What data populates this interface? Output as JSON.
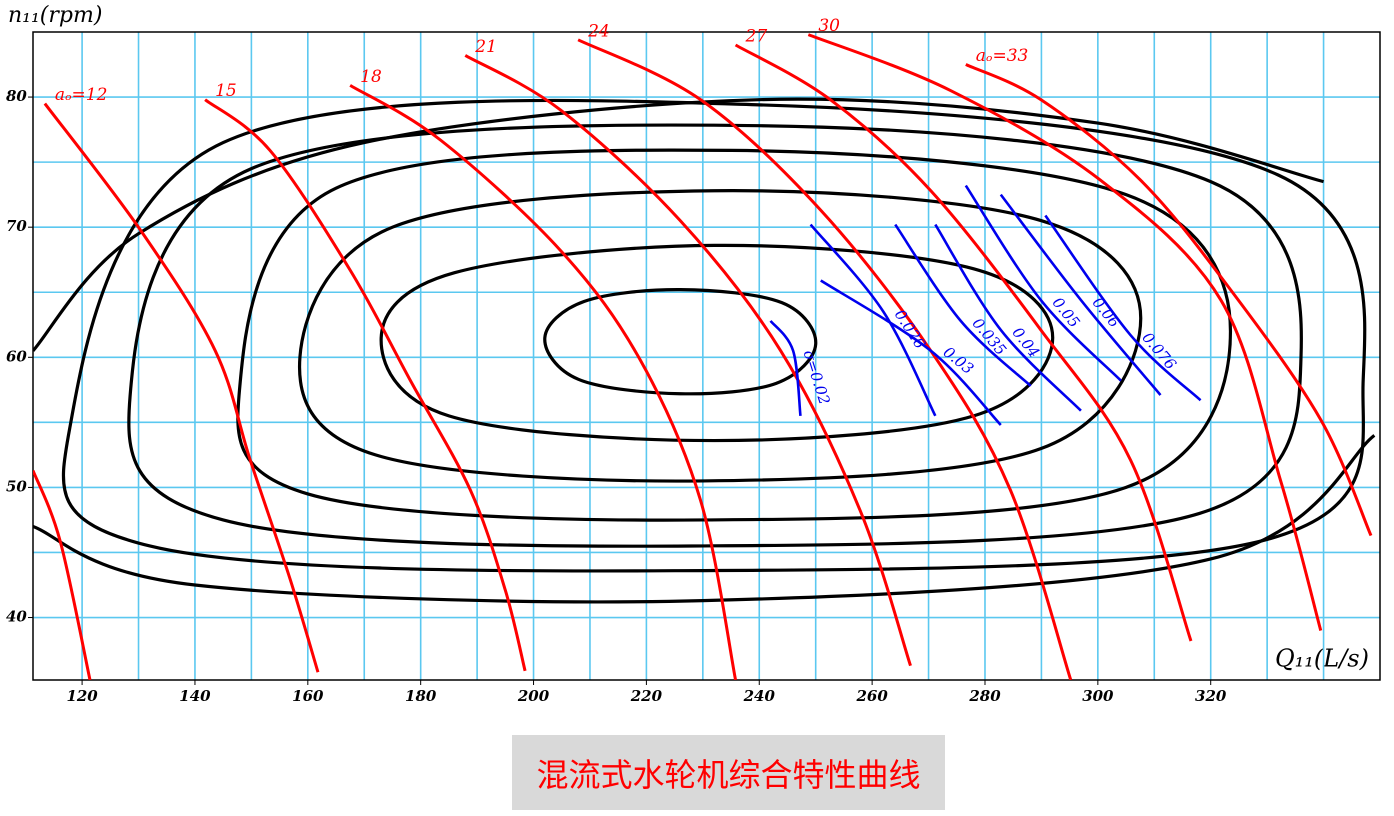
{
  "chart_data": {
    "type": "line",
    "y_label": "n₁₁(rpm)",
    "x_label": "Q₁₁(L/s)",
    "caption": "混流式水轮机综合特性曲线",
    "xlim": [
      111.3,
      350
    ],
    "ylim": [
      35.2,
      85
    ],
    "xticks": [
      120,
      140,
      160,
      180,
      200,
      220,
      240,
      260,
      280,
      300,
      320
    ],
    "yticks": [
      40,
      50,
      60,
      70,
      80
    ],
    "xgrid": [
      120,
      130,
      140,
      150,
      160,
      170,
      180,
      190,
      200,
      210,
      220,
      230,
      240,
      250,
      260,
      270,
      280,
      290,
      300,
      310,
      320,
      330,
      340
    ],
    "ygrid": [
      40,
      45,
      50,
      55,
      60,
      65,
      70,
      75,
      80
    ],
    "grid_color": "#5bc8f0",
    "efficiency_contours": [
      {
        "color": "#000000",
        "closed": true,
        "x": [
          202,
          208,
          226,
          243,
          250,
          244,
          226,
          209
        ],
        "y": [
          61.5,
          58.3,
          57.2,
          58,
          61,
          64.2,
          65.2,
          64.3
        ]
      },
      {
        "color": "#000000",
        "closed": true,
        "x": [
          173,
          185,
          232,
          278,
          292,
          278,
          232,
          186
        ],
        "y": [
          61.5,
          55.5,
          53.6,
          55.5,
          61.5,
          66.8,
          68.6,
          66.5
        ]
      },
      {
        "color": "#000000",
        "closed": true,
        "x": [
          158.6,
          172,
          230,
          290,
          307.6,
          290,
          232,
          175
        ],
        "y": [
          60,
          52.5,
          50.5,
          53,
          63,
          70.5,
          72.8,
          70
        ]
      },
      {
        "color": "#000000",
        "closed": true,
        "x": [
          148,
          160,
          230,
          305,
          323.5,
          305,
          235,
          165
        ],
        "y": [
          58,
          49.5,
          47.5,
          50,
          62,
          72.5,
          75.9,
          73
        ]
      },
      {
        "color": "#000000",
        "closed": true,
        "x": [
          128.5,
          145,
          228,
          318,
          336,
          320,
          240,
          150
        ],
        "y": [
          57,
          47.5,
          45.5,
          48,
          60,
          73.5,
          77.8,
          74.5
        ]
      },
      {
        "color": "#000000",
        "closed": true,
        "x": [
          118,
          132,
          225,
          330,
          347,
          332,
          240,
          145
        ],
        "y": [
          55,
          45.5,
          43.6,
          46,
          58,
          74,
          79.4,
          76.5
        ]
      },
      {
        "color": "#000000",
        "closed": false,
        "x": [
          111.3,
          130,
          170,
          240,
          300,
          340
        ],
        "y": [
          60.5,
          69.5,
          76.5,
          79.8,
          78,
          73.5
        ]
      },
      {
        "color": "#000000",
        "closed": false,
        "x": [
          111.3,
          140,
          230,
          320,
          349
        ],
        "y": [
          47,
          42.5,
          41.3,
          44.5,
          54
        ]
      }
    ],
    "opening_lines": [
      {
        "color": "#ff0000",
        "x": [
          111.3,
          116.1,
          121.4
        ],
        "y": [
          51.3,
          45.9,
          35.2
        ]
      },
      {
        "name": "aₒ=12",
        "color": "#ff0000",
        "x": [
          113.4,
          130.3,
          143.6,
          149.8,
          156.9,
          161.8
        ],
        "y": [
          79.5,
          69.8,
          60.5,
          52.1,
          42.9,
          35.8
        ]
      },
      {
        "name": "15",
        "color": "#ff0000",
        "x": [
          141.8,
          153.3,
          167.5,
          178.2,
          188.8,
          195,
          198.5
        ],
        "y": [
          79.8,
          75.9,
          66.7,
          58.2,
          49.8,
          42.1,
          35.9
        ]
      },
      {
        "name": "18",
        "color": "#ff0000",
        "x": [
          167.5,
          183.5,
          204.8,
          218.9,
          229.6,
          235.8
        ],
        "y": [
          80.9,
          76.7,
          68.2,
          59.8,
          49,
          35.2
        ]
      },
      {
        "name": "21",
        "color": "#ff0000",
        "x": [
          187.9,
          204.8,
          226,
          243.8,
          257.9,
          266.8
        ],
        "y": [
          83.2,
          79,
          70.5,
          60.5,
          48.2,
          36.3
        ]
      },
      {
        "name": "24",
        "color": "#ff0000",
        "x": [
          207.9,
          229.6,
          250.9,
          270.4,
          284.5,
          295.2
        ],
        "y": [
          84.4,
          79.8,
          71.3,
          60.5,
          49.8,
          35.2
        ]
      },
      {
        "name": "27",
        "color": "#ff0000",
        "x": [
          235.8,
          252.6,
          270.4,
          289.9,
          305.8,
          316.5
        ],
        "y": [
          84,
          79.8,
          72.8,
          62.1,
          52.1,
          38.2
        ]
      },
      {
        "name": "30",
        "color": "#ff0000",
        "x": [
          248.7,
          273.9,
          300.5,
          321.8,
          332.4,
          339.5
        ],
        "y": [
          84.8,
          80.5,
          73.6,
          64.4,
          50.5,
          39
        ]
      },
      {
        "name": "aₒ=33",
        "color": "#ff0000",
        "x": [
          276.6,
          289.9,
          307.6,
          323.5,
          339.5,
          348.4
        ],
        "y": [
          82.5,
          79.8,
          73.6,
          65.2,
          55.2,
          46.3
        ]
      }
    ],
    "sigma_lines": [
      {
        "name": "σ=0.02",
        "color": "#0000ee",
        "x": [
          242,
          246,
          247.3
        ],
        "y": [
          62.8,
          60.5,
          55.5
        ]
      },
      {
        "name": "0.026",
        "color": "#0000ee",
        "x": [
          249.1,
          262,
          271.2
        ],
        "y": [
          70.2,
          63.5,
          55.5
        ]
      },
      {
        "name": "0.03",
        "color": "#0000ee",
        "x": [
          250.9,
          270.4,
          282.8
        ],
        "y": [
          65.9,
          60.5,
          54.8
        ]
      },
      {
        "name": "0.035",
        "color": "#0000ee",
        "x": [
          264.1,
          275.7,
          288.1
        ],
        "y": [
          70.2,
          62.8,
          57.8
        ]
      },
      {
        "name": "0.04",
        "color": "#0000ee",
        "x": [
          271.2,
          282.8,
          297
        ],
        "y": [
          70.2,
          62.1,
          55.9
        ]
      },
      {
        "name": "0.05",
        "color": "#0000ee",
        "x": [
          276.6,
          289.9,
          304.1
        ],
        "y": [
          73.2,
          64.4,
          58.2
        ]
      },
      {
        "name": "0.06",
        "color": "#0000ee",
        "x": [
          282.8,
          297,
          311.1
        ],
        "y": [
          72.5,
          64.4,
          57.1
        ]
      },
      {
        "name": "0.076",
        "color": "#0000ee",
        "x": [
          290.7,
          305.8,
          318.2
        ],
        "y": [
          70.9,
          61.7,
          56.7
        ]
      }
    ]
  }
}
